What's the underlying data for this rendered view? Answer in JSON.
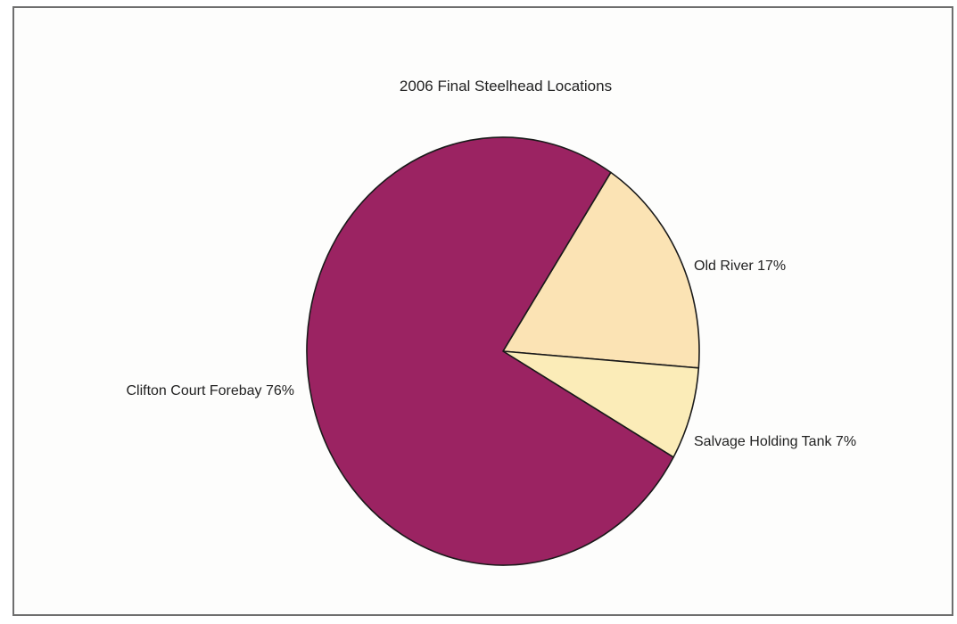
{
  "chart_data": {
    "type": "pie",
    "title": "2006 Final Steelhead Locations",
    "slices": [
      {
        "label": "Old River 17%",
        "name": "Old River",
        "value": 17,
        "color": "#fbe3b4"
      },
      {
        "label": "Salvage Holding Tank 7%",
        "name": "Salvage Holding Tank",
        "value": 7,
        "color": "#fbecb8"
      },
      {
        "label": "Clifton Court Forebay 76%",
        "name": "Clifton Court Forebay",
        "value": 76,
        "color": "#9b2362"
      }
    ],
    "edge_color": "#1a1a1a",
    "legend": "none"
  }
}
